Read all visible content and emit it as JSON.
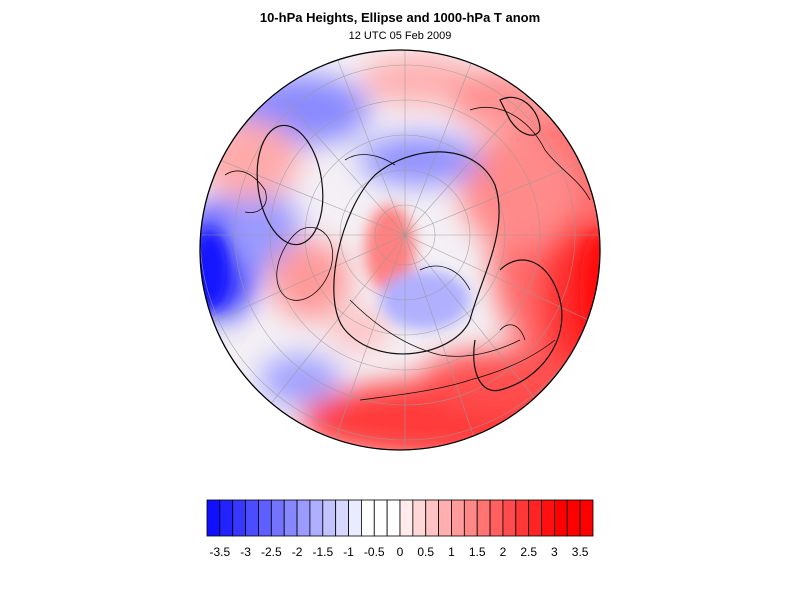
{
  "title": "10-hPa Heights, Ellipse and 1000-hPa T anom",
  "subtitle": "12 UTC 05 Feb 2009",
  "map": {
    "projection": "orthographic",
    "hemisphere": "northern",
    "field": "1000-hPa T anom",
    "contours": "10-hPa Heights",
    "overlay": "Ellipse",
    "graticule": true
  },
  "colorbar": {
    "min": -3.75,
    "max": 3.75,
    "step": 0.25,
    "colors": [
      "#1010ff",
      "#2323ff",
      "#3737ff",
      "#4b4bff",
      "#5f5fff",
      "#7373ff",
      "#8787ff",
      "#9b9bff",
      "#afafff",
      "#c3c3ff",
      "#d7d7ff",
      "#ebebff",
      "#ffffff",
      "#ffffff",
      "#ffffff",
      "#ffebeb",
      "#ffd7d7",
      "#ffc3c3",
      "#ffafaf",
      "#ff9b9b",
      "#ff8787",
      "#ff7373",
      "#ff5f5f",
      "#ff4b4b",
      "#ff3737",
      "#ff2323",
      "#ff1010",
      "#ff0000",
      "#ff0000",
      "#ff0000"
    ],
    "tick_labels": [
      "-3.5",
      "-3",
      "-2.5",
      "-2",
      "-1.5",
      "-1",
      "-0.5",
      "0",
      "0.5",
      "1",
      "1.5",
      "2",
      "2.5",
      "3",
      "3.5"
    ],
    "tick_values": [
      -3.5,
      -3,
      -2.5,
      -2,
      -1.5,
      -1,
      -0.5,
      0,
      0.5,
      1,
      1.5,
      2,
      2.5,
      3,
      3.5
    ]
  }
}
